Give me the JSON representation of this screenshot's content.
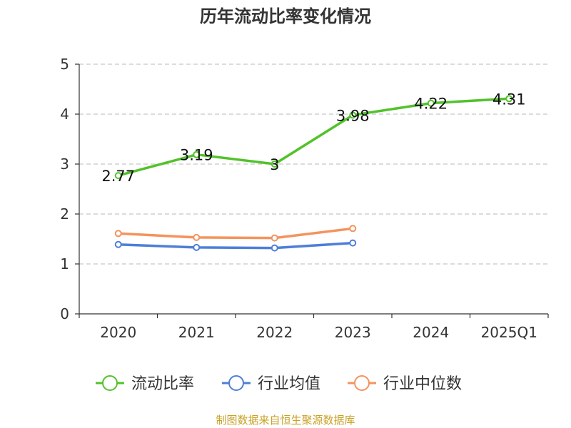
{
  "chart_data": {
    "type": "line",
    "title": "历年流动比率变化情况",
    "categories": [
      "2020",
      "2021",
      "2022",
      "2023",
      "2024",
      "2025Q1"
    ],
    "ylim": [
      0,
      5
    ],
    "yticks": [
      "0",
      "1",
      "2",
      "3",
      "4",
      "5"
    ],
    "grid": true,
    "legend_position": "bottom",
    "series": [
      {
        "name": "流动比率",
        "color": "#52c22b",
        "values": [
          2.77,
          3.19,
          3.0,
          3.98,
          4.22,
          4.31
        ],
        "labels": [
          "2.77",
          "3.19",
          "3",
          "3.98",
          "4.22",
          "4.31"
        ]
      },
      {
        "name": "行业均值",
        "color": "#4d7fd8",
        "values": [
          1.39,
          1.33,
          1.32,
          1.42,
          null,
          null
        ]
      },
      {
        "name": "行业中位数",
        "color": "#f4935d",
        "values": [
          1.61,
          1.53,
          1.52,
          1.71,
          null,
          null
        ]
      }
    ]
  },
  "footer": {
    "source": "制图数据来自恒生聚源数据库"
  }
}
